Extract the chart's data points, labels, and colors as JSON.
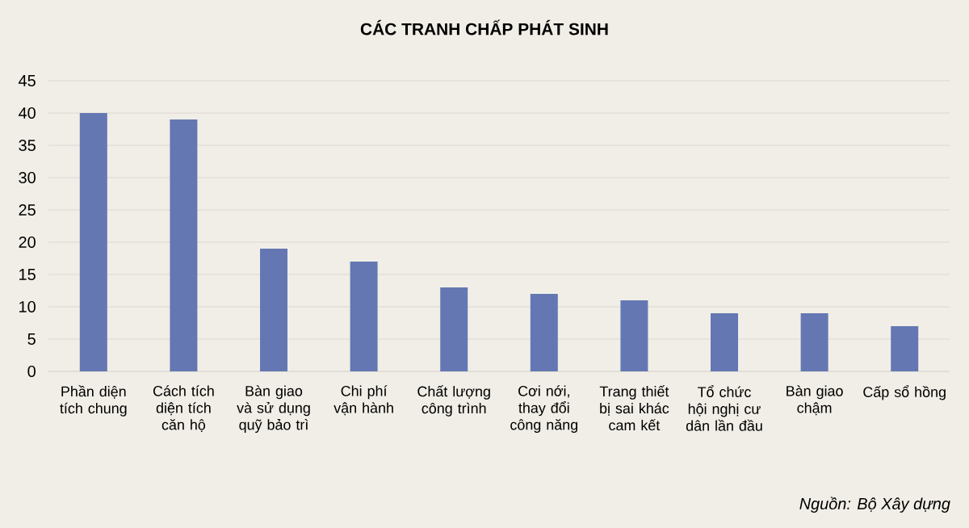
{
  "chart_data": {
    "type": "bar",
    "title": "CÁC TRANH CHẤP PHÁT SINH",
    "categories": [
      "Phần diện tích chung",
      "Cách tích diện tích căn hộ",
      "Bàn giao và sử dụng quỹ bảo trì",
      "Chi phí vận hành",
      "Chất lượng công trình",
      "Cơi nới, thay đổi công năng",
      "Trang thiết bị sai khác cam kết",
      "Tổ chức hội nghị cư dân lần đầu",
      "Bàn giao chậm",
      "Cấp sổ hồng"
    ],
    "values": [
      40,
      39,
      19,
      17,
      13,
      12,
      11,
      9,
      9,
      7
    ],
    "color": "#6577b3",
    "ylim": [
      0,
      45
    ],
    "yticks": [
      0,
      5,
      10,
      15,
      20,
      25,
      30,
      35,
      40,
      45
    ],
    "grid": "y",
    "annotations": [
      "Nguồn: Bộ Xây dựng"
    ]
  }
}
